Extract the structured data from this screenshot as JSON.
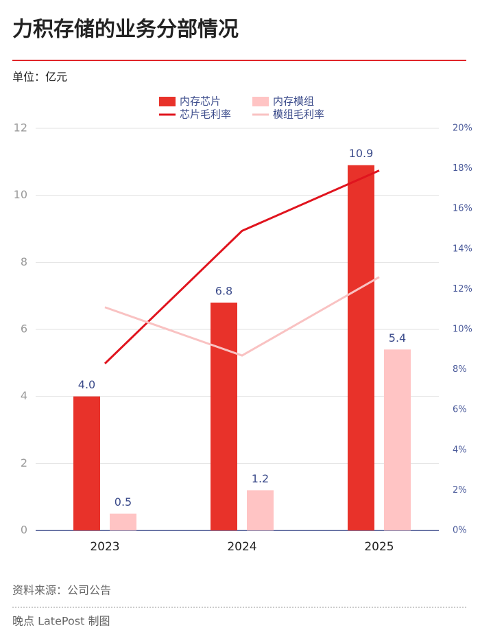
{
  "chart_data": {
    "type": "bar",
    "title": "力积存储的业务分部情况",
    "unit": "单位：亿元",
    "source": "资料来源：公司公告",
    "credit": "晚点 LatePost 制图",
    "categories": [
      "2023",
      "2024",
      "2025"
    ],
    "series": [
      {
        "name": "内存芯片",
        "type": "bar",
        "color": "#e8322a",
        "values": [
          4.0,
          6.8,
          10.9
        ],
        "value_labels": [
          "4.0",
          "6.8",
          "10.9"
        ]
      },
      {
        "name": "内存模组",
        "type": "bar",
        "color": "#ffc4c4",
        "values": [
          0.5,
          1.2,
          5.4
        ],
        "value_labels": [
          "0.5",
          "1.2",
          "5.4"
        ]
      },
      {
        "name": "芯片毛利率",
        "type": "line",
        "axis": "y2",
        "color": "#e0141e",
        "values": [
          8.3,
          14.9,
          17.9
        ]
      },
      {
        "name": "模组毛利率",
        "type": "line",
        "axis": "y2",
        "color": "#f9c2c2",
        "values": [
          11.1,
          8.7,
          12.6
        ]
      }
    ],
    "ylim": [
      0,
      12
    ],
    "yticks": [
      0,
      2,
      4,
      6,
      8,
      10,
      12
    ],
    "y2lim": [
      0,
      20
    ],
    "y2ticks": [
      {
        "value": 0,
        "label": "0%"
      },
      {
        "value": 2,
        "label": "2%"
      },
      {
        "value": 4,
        "label": "4%"
      },
      {
        "value": 6,
        "label": "6%"
      },
      {
        "value": 8,
        "label": "8%"
      },
      {
        "value": 10,
        "label": "10%"
      },
      {
        "value": 12,
        "label": "12%"
      },
      {
        "value": 14,
        "label": "14%"
      },
      {
        "value": 16,
        "label": "16%"
      },
      {
        "value": 18,
        "label": "18%"
      },
      {
        "value": 20,
        "label": "20%"
      }
    ],
    "grid": true
  }
}
